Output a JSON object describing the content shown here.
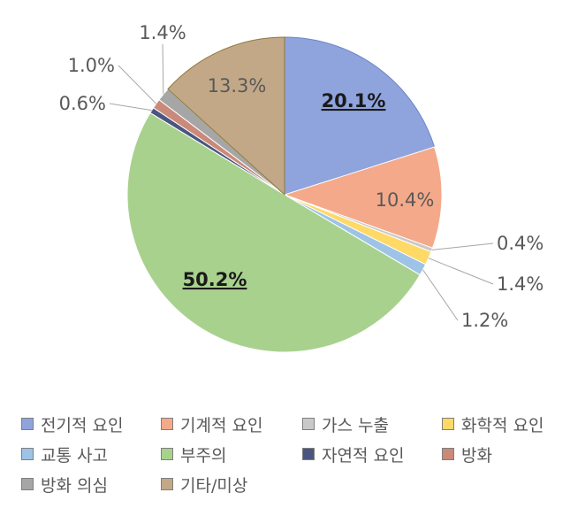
{
  "chart_data": {
    "type": "pie",
    "title": "",
    "categories": [
      "전기적 요인",
      "기계적 요인",
      "가스 누출",
      "화학적 요인",
      "교통 사고",
      "부주의",
      "자연적 요인",
      "방화",
      "방화 의심",
      "기타/미상"
    ],
    "values": [
      20.1,
      10.4,
      0.4,
      1.4,
      1.2,
      50.2,
      0.6,
      1.0,
      1.4,
      13.3
    ],
    "labels": [
      "20.1%",
      "10.4%",
      "0.4%",
      "1.4%",
      "1.2%",
      "50.2%",
      "0.6%",
      "1.0%",
      "1.4%",
      "13.3%"
    ],
    "colors": [
      "#8fa3dc",
      "#f4a98a",
      "#c9c9c9",
      "#ffd966",
      "#9dc3e6",
      "#a9d18e",
      "#4a5680",
      "#c98a7a",
      "#a6a6a6",
      "#c2a887"
    ],
    "emphasized_labels": [
      "20.1%",
      "50.2%"
    ],
    "legend_position": "bottom"
  }
}
